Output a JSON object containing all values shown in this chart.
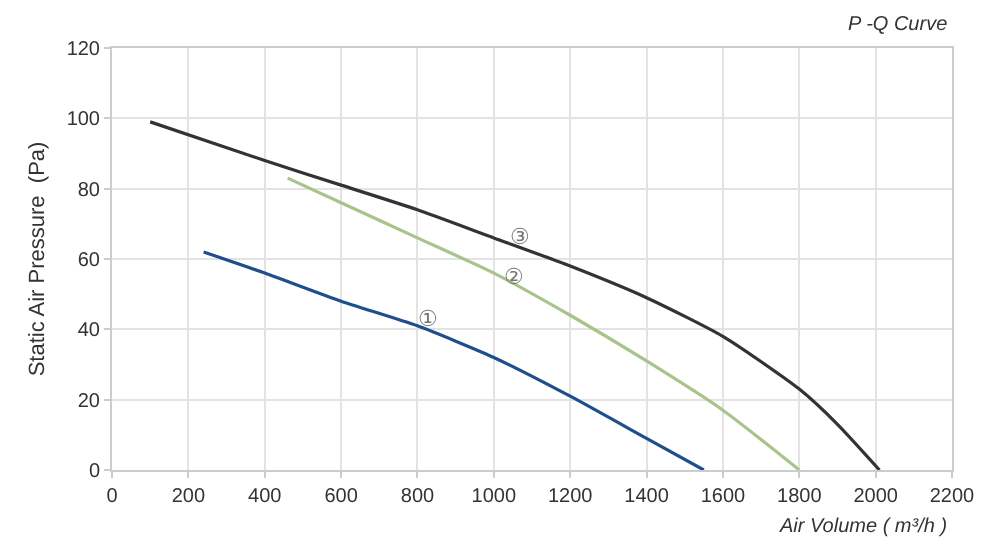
{
  "chart_data": {
    "type": "line",
    "title": "P -Q Curve",
    "xlabel": "Air Volume ( m³/h )",
    "ylabel": "Static Air Pressure  (Pa)",
    "series": [
      {
        "color": "#1f4e8c",
        "x": [
          240,
          400,
          600,
          800,
          1000,
          1200,
          1400,
          1550
        ],
        "values": [
          62,
          56,
          48,
          41,
          32,
          21,
          9,
          0
        ]
      },
      {
        "color": "#a8c48a",
        "x": [
          460,
          600,
          800,
          1000,
          1200,
          1400,
          1600,
          1800
        ],
        "values": [
          83,
          76,
          66,
          56,
          44,
          31,
          17,
          0
        ]
      },
      {
        "color": "#333333",
        "x": [
          100,
          400,
          600,
          800,
          1000,
          1200,
          1400,
          1600,
          1800,
          1900,
          2010
        ],
        "values": [
          99,
          88,
          81,
          74,
          66,
          58,
          49,
          38,
          23,
          13,
          0
        ]
      }
    ],
    "annotations": [
      {
        "text": "①",
        "x": 830,
        "y": 43
      },
      {
        "text": "②",
        "x": 1055,
        "y": 55
      },
      {
        "text": "③",
        "x": 1066,
        "y": 66
      }
    ],
    "xlim": [
      0,
      2200
    ],
    "xticks": [
      0,
      200,
      400,
      600,
      800,
      1000,
      1200,
      1400,
      1600,
      1800,
      2000,
      2200
    ],
    "ylim": [
      0,
      120
    ],
    "yticks": [
      0,
      20,
      40,
      60,
      80,
      100,
      120
    ],
    "grid": true,
    "marker": "none",
    "line_style": "solid"
  }
}
